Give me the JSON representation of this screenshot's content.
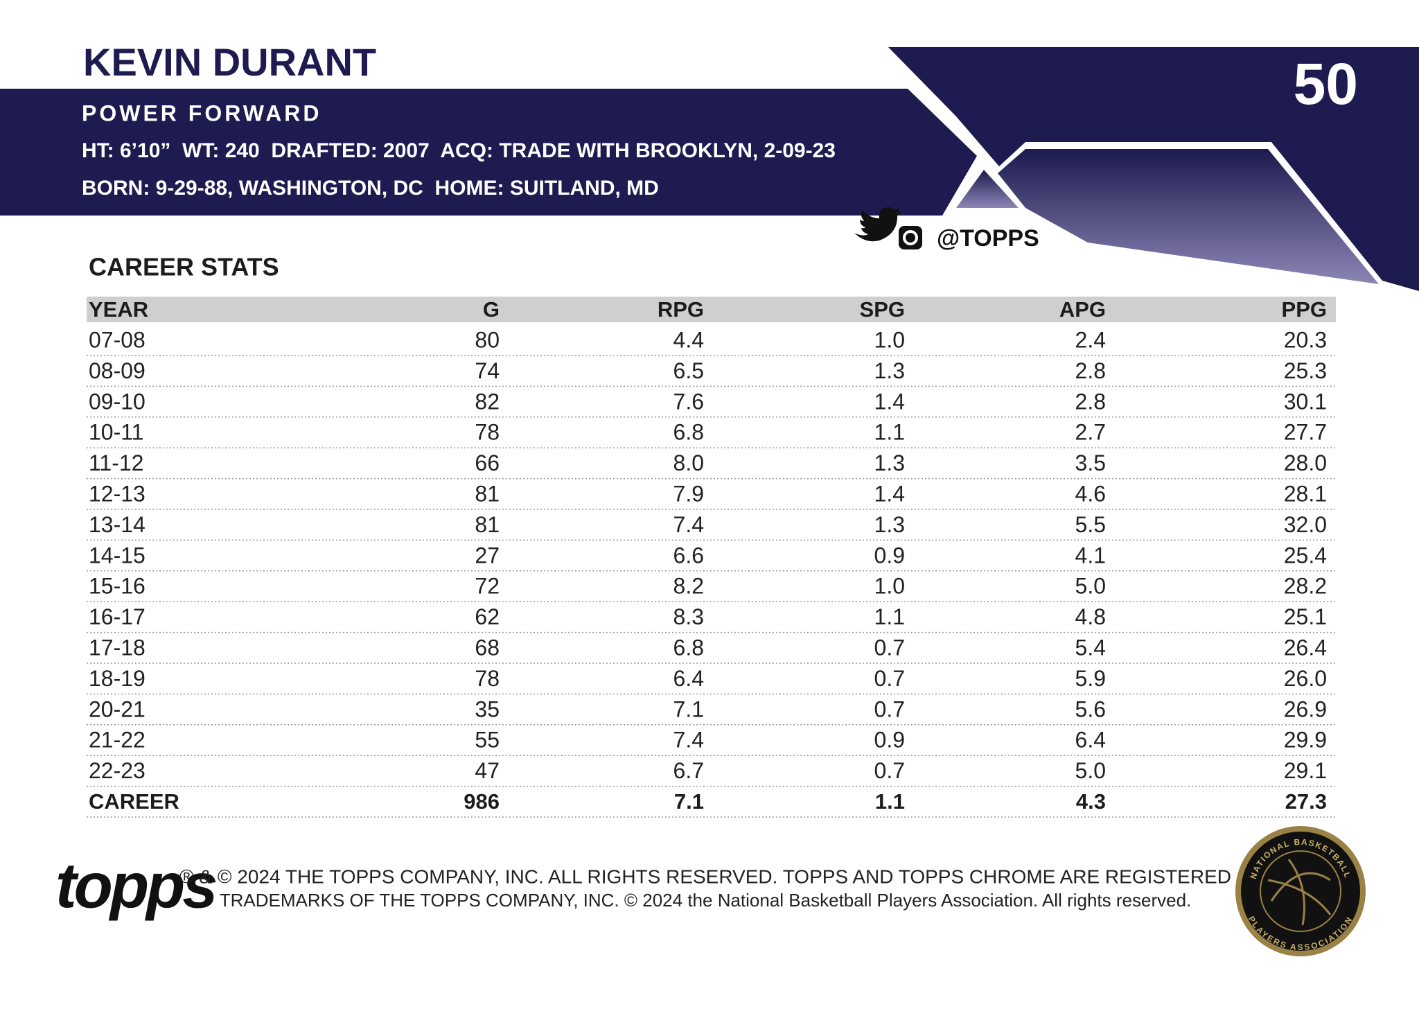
{
  "header": {
    "name": "KEVIN DURANT",
    "position": "POWER FORWARD",
    "bio": [
      "HT: 6’10”  WT: 240  DRAFTED: 2007  ACQ: TRADE WITH BROOKLYN, 2-09-23",
      "BORN: 9-29-88, WASHINGTON, DC  HOME: SUITLAND, MD"
    ],
    "card_number": "50",
    "social": "@TOPPS"
  },
  "stats": {
    "title": "CAREER STATS",
    "columns": [
      "YEAR",
      "G",
      "RPG",
      "SPG",
      "APG",
      "PPG"
    ],
    "rows": [
      [
        "07-08",
        "80",
        "4.4",
        "1.0",
        "2.4",
        "20.3"
      ],
      [
        "08-09",
        "74",
        "6.5",
        "1.3",
        "2.8",
        "25.3"
      ],
      [
        "09-10",
        "82",
        "7.6",
        "1.4",
        "2.8",
        "30.1"
      ],
      [
        "10-11",
        "78",
        "6.8",
        "1.1",
        "2.7",
        "27.7"
      ],
      [
        "11-12",
        "66",
        "8.0",
        "1.3",
        "3.5",
        "28.0"
      ],
      [
        "12-13",
        "81",
        "7.9",
        "1.4",
        "4.6",
        "28.1"
      ],
      [
        "13-14",
        "81",
        "7.4",
        "1.3",
        "5.5",
        "32.0"
      ],
      [
        "14-15",
        "27",
        "6.6",
        "0.9",
        "4.1",
        "25.4"
      ],
      [
        "15-16",
        "72",
        "8.2",
        "1.0",
        "5.0",
        "28.2"
      ],
      [
        "16-17",
        "62",
        "8.3",
        "1.1",
        "4.8",
        "25.1"
      ],
      [
        "17-18",
        "68",
        "6.8",
        "0.7",
        "5.4",
        "26.4"
      ],
      [
        "18-19",
        "78",
        "6.4",
        "0.7",
        "5.9",
        "26.0"
      ],
      [
        "20-21",
        "35",
        "7.1",
        "0.7",
        "5.6",
        "26.9"
      ],
      [
        "21-22",
        "55",
        "7.4",
        "0.9",
        "6.4",
        "29.9"
      ],
      [
        "22-23",
        "47",
        "6.7",
        "0.7",
        "5.0",
        "29.1"
      ]
    ],
    "total": [
      "CAREER",
      "986",
      "7.1",
      "1.1",
      "4.3",
      "27.3"
    ]
  },
  "footer": {
    "legal": [
      "® & © 2024 THE TOPPS COMPANY, INC. ALL RIGHTS RESERVED. TOPPS AND TOPPS CHROME ARE REGISTERED",
      "TRADEMARKS OF THE TOPPS COMPANY, INC. © 2024 the National Basketball Players Association. All rights reserved."
    ],
    "logo": "topps",
    "seal": [
      "NATIONAL BASKETBALL",
      "PLAYERS ASSOCIATION"
    ]
  }
}
